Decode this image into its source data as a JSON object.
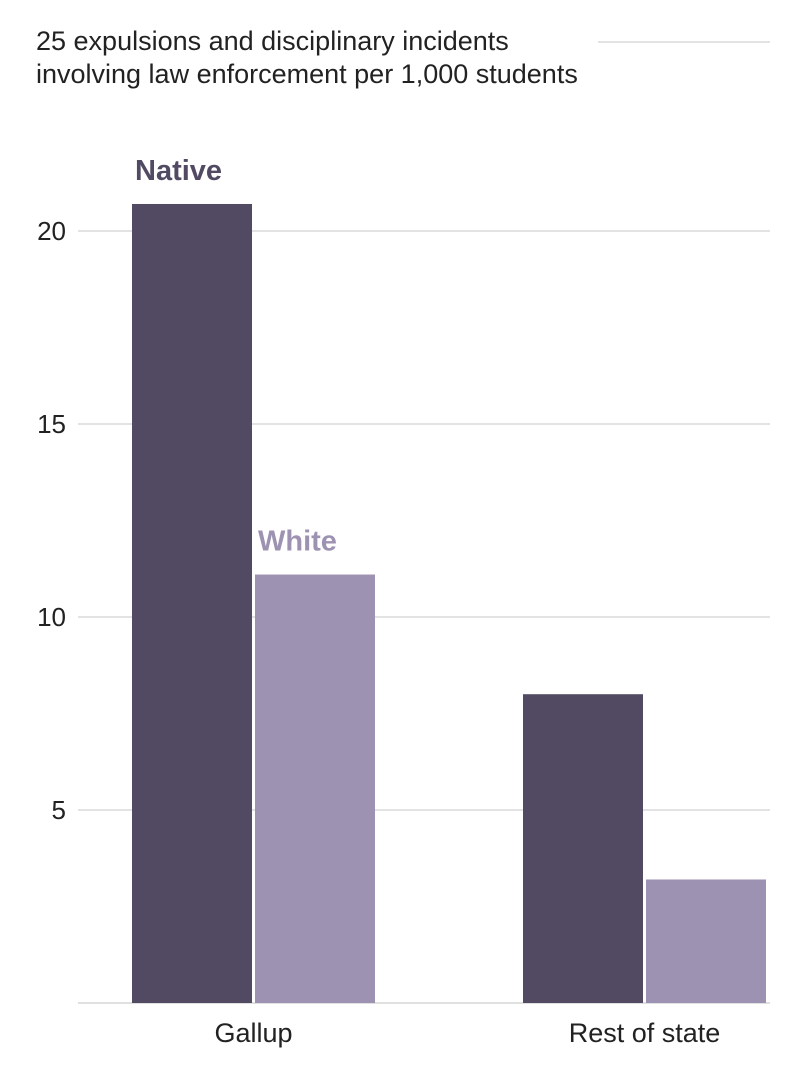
{
  "chart_data": {
    "type": "bar",
    "title_lines": [
      "25 expulsions and disciplinary incidents",
      "involving law enforcement per 1,000 students"
    ],
    "categories": [
      "Gallup",
      "Rest of state"
    ],
    "series": [
      {
        "name": "Native",
        "values": [
          20.7,
          8.0
        ],
        "color": "#524a63"
      },
      {
        "name": "White",
        "values": [
          11.1,
          3.2
        ],
        "color": "#9d92b1"
      }
    ],
    "y_ticks": [
      5,
      10,
      15,
      20
    ],
    "top_tick_label": "25",
    "ylim": [
      0,
      25
    ],
    "grid": true
  }
}
